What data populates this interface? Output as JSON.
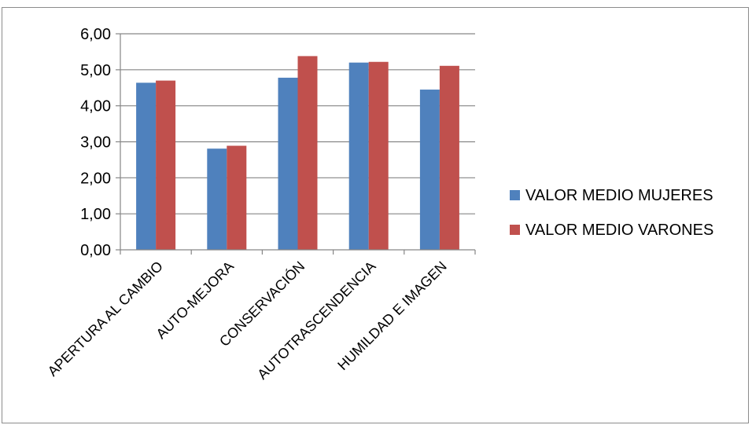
{
  "chart_data": {
    "type": "bar",
    "title": "",
    "xlabel": "",
    "ylabel": "",
    "categories": [
      "APERTURA AL CAMBIO",
      "AUTO-MEJORA",
      "CONSERVACIÓN",
      "AUTOTRASCENDENCIA",
      "HUMILDAD E IMAGEN"
    ],
    "series": [
      {
        "name": "VALOR MEDIO MUJERES",
        "values": [
          4.64,
          2.81,
          4.78,
          5.2,
          4.45
        ],
        "color": "#4f81bd"
      },
      {
        "name": "VALOR MEDIO VARONES",
        "values": [
          4.7,
          2.89,
          5.38,
          5.22,
          5.11
        ],
        "color": "#c0504d"
      }
    ],
    "ylim": [
      0,
      6
    ],
    "yticks": [
      "0,00",
      "1,00",
      "2,00",
      "3,00",
      "4,00",
      "5,00",
      "6,00"
    ],
    "grid": true,
    "legend": "right"
  }
}
